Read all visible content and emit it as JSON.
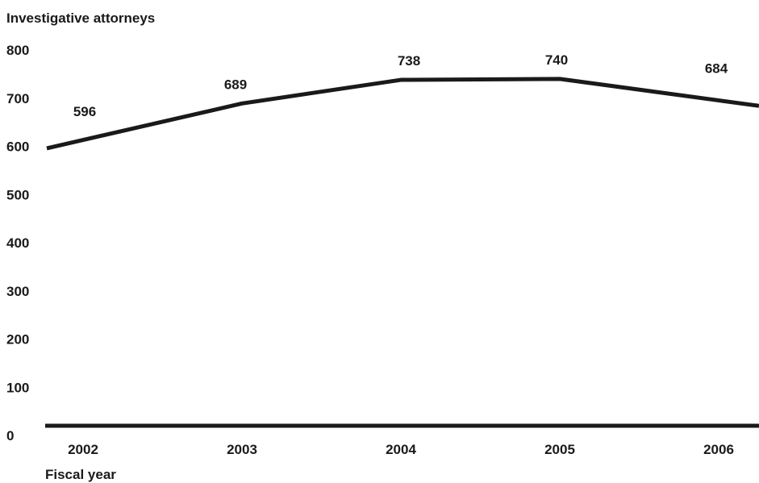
{
  "chart_data": {
    "type": "line",
    "title": "",
    "ylabel": "Investigative attorneys",
    "xlabel": "Fiscal year",
    "categories": [
      "2002",
      "2003",
      "2004",
      "2005",
      "2006"
    ],
    "series": [
      {
        "values": [
          596,
          689,
          738,
          740,
          684
        ],
        "data_labels": [
          "596",
          "689",
          "738",
          "740",
          "684"
        ],
        "color": "#1a1a1a"
      }
    ],
    "ylim": [
      0,
      800
    ],
    "yticks": [
      "0",
      "100",
      "200",
      "300",
      "400",
      "500",
      "600",
      "700",
      "800"
    ],
    "grid": false,
    "legend": "none"
  }
}
